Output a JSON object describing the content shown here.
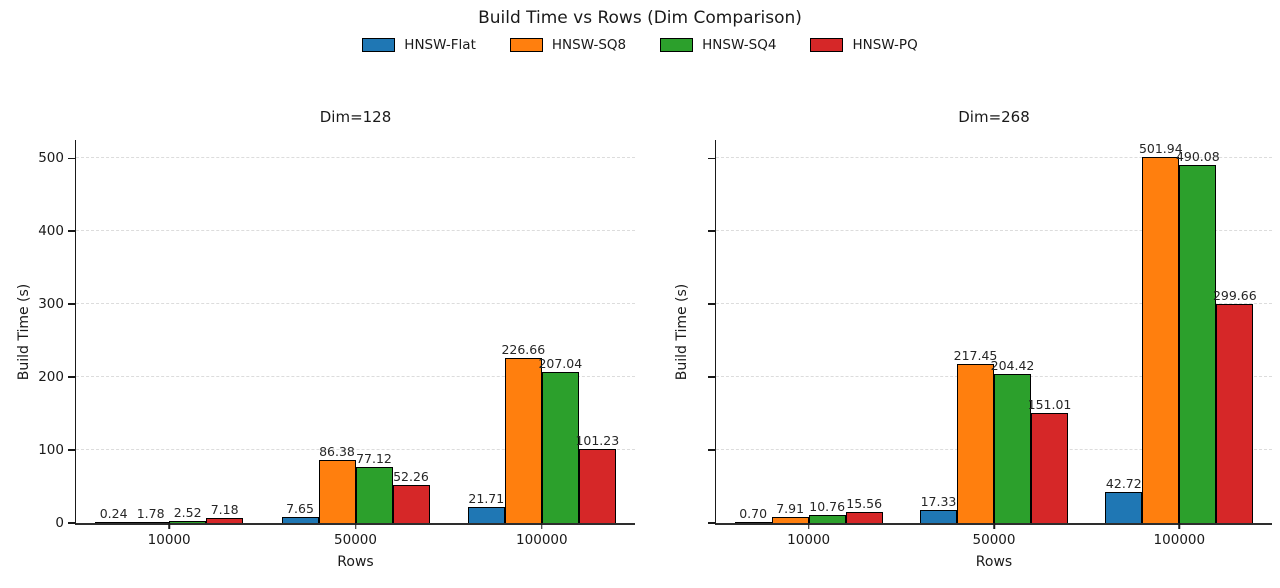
{
  "figure": {
    "title": "Build Time vs Rows (Dim Comparison)",
    "legend": [
      {
        "label": "HNSW-Flat",
        "color": "#1f77b4"
      },
      {
        "label": "HNSW-SQ8",
        "color": "#ff7f0e"
      },
      {
        "label": "HNSW-SQ4",
        "color": "#2ca02c"
      },
      {
        "label": "HNSW-PQ",
        "color": "#d62728"
      }
    ],
    "colors": {
      "bar_edge": "#000000",
      "grid": "#dcdcdc",
      "spine": "#1a1a1a",
      "background": "#ffffff"
    }
  },
  "chart_data": [
    {
      "type": "bar",
      "title": "Dim=128",
      "xlabel": "Rows",
      "ylabel": "Build Time (s)",
      "categories": [
        "10000",
        "50000",
        "100000"
      ],
      "series": [
        {
          "name": "HNSW-Flat",
          "color": "#1f77b4",
          "values": [
            0.24,
            7.65,
            21.71
          ]
        },
        {
          "name": "HNSW-SQ8",
          "color": "#ff7f0e",
          "values": [
            1.78,
            86.38,
            226.66
          ]
        },
        {
          "name": "HNSW-SQ4",
          "color": "#2ca02c",
          "values": [
            2.52,
            77.12,
            207.04
          ]
        },
        {
          "name": "HNSW-PQ",
          "color": "#d62728",
          "values": [
            7.18,
            52.26,
            101.23
          ]
        }
      ],
      "ylim": [
        0,
        525
      ],
      "yticks": [
        0,
        100,
        200,
        300,
        400,
        500
      ],
      "show_ytick_labels": true,
      "grid": "horizontal-dashed",
      "legend_position": "figure-top",
      "value_label_format": "2-decimals"
    },
    {
      "type": "bar",
      "title": "Dim=268",
      "xlabel": "Rows",
      "ylabel": "Build Time (s)",
      "categories": [
        "10000",
        "50000",
        "100000"
      ],
      "series": [
        {
          "name": "HNSW-Flat",
          "color": "#1f77b4",
          "values": [
            0.7,
            17.33,
            42.72
          ]
        },
        {
          "name": "HNSW-SQ8",
          "color": "#ff7f0e",
          "values": [
            7.91,
            217.45,
            501.94
          ]
        },
        {
          "name": "HNSW-SQ4",
          "color": "#2ca02c",
          "values": [
            10.76,
            204.42,
            490.08
          ]
        },
        {
          "name": "HNSW-PQ",
          "color": "#d62728",
          "values": [
            15.56,
            151.01,
            299.66
          ]
        }
      ],
      "ylim": [
        0,
        525
      ],
      "yticks": [
        0,
        100,
        200,
        300,
        400,
        500
      ],
      "show_ytick_labels": false,
      "grid": "horizontal-dashed",
      "legend_position": "figure-top",
      "value_label_format": "2-decimals"
    }
  ]
}
